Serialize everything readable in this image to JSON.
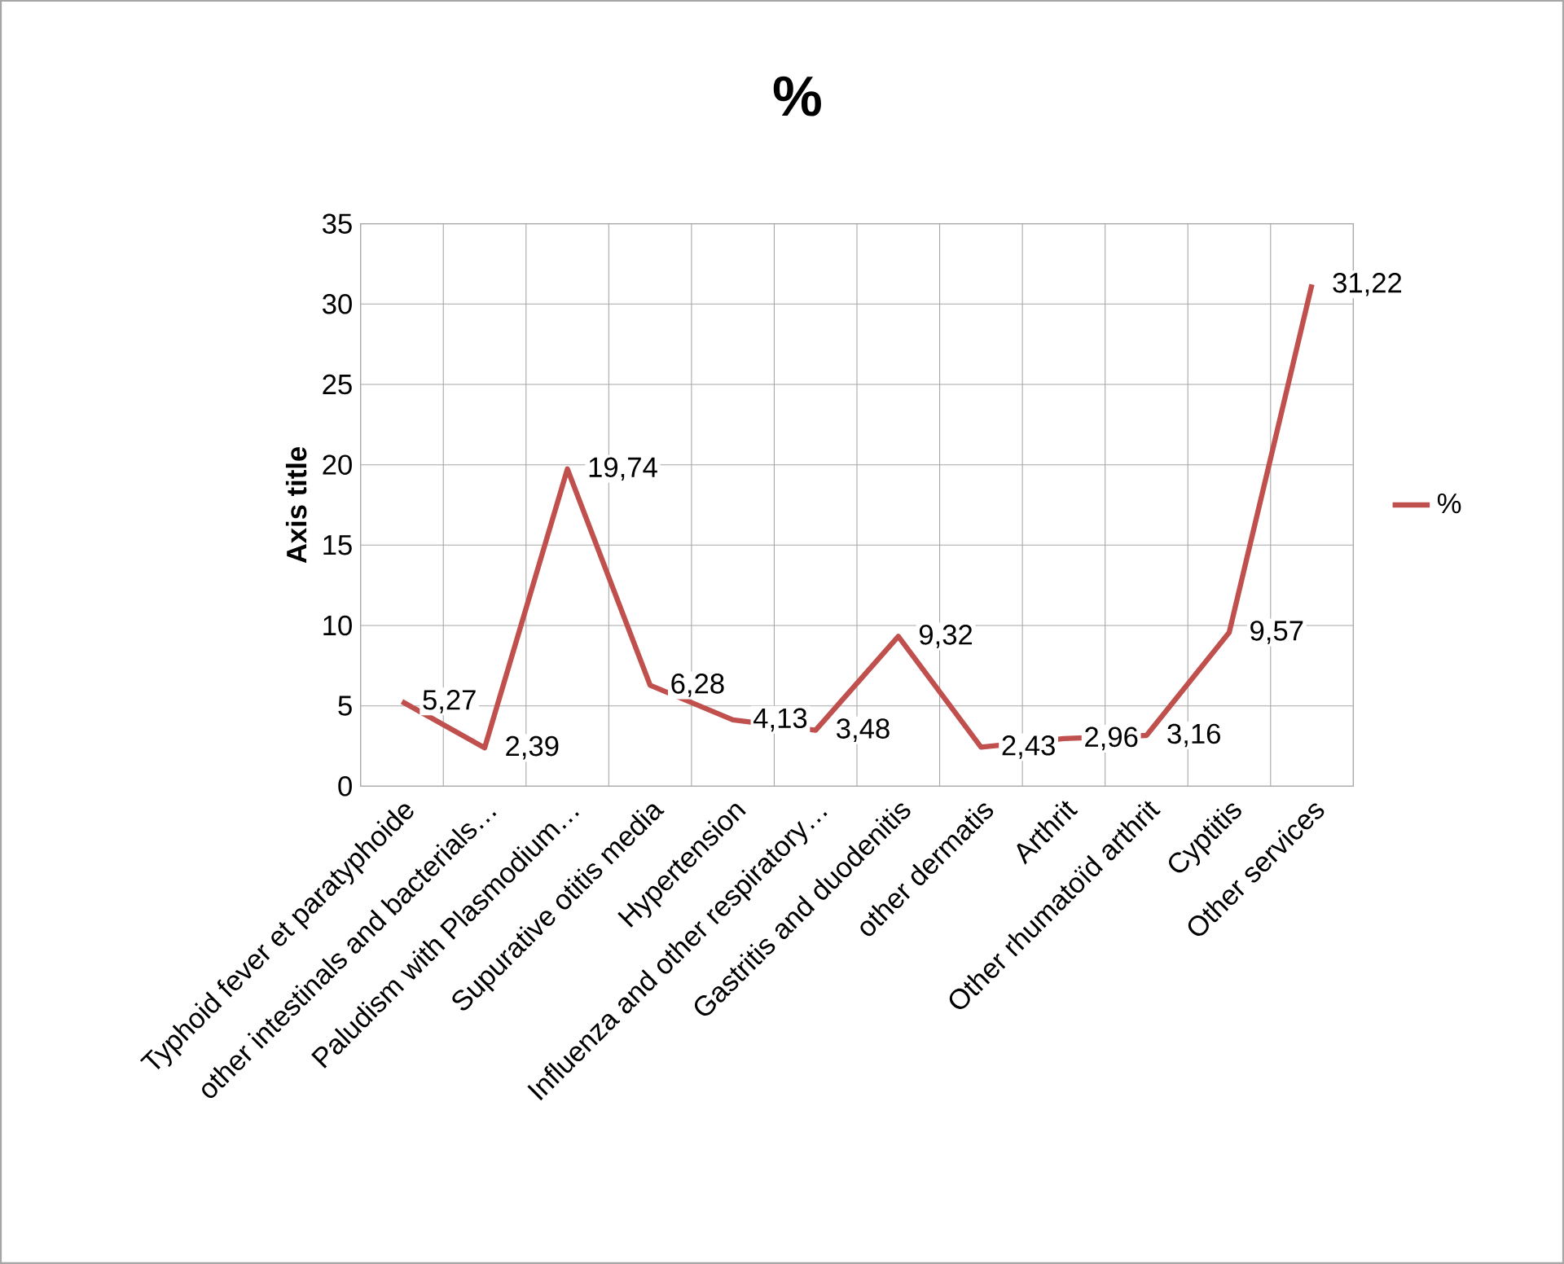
{
  "chart_data": {
    "type": "line",
    "title": "%",
    "ylabel": "Axis title",
    "categories": [
      "Typhoid fever et paratyphoide",
      "other intestinals and bacterials…",
      "Paludism with Plasmodium…",
      "Supurative otitis media",
      "Hypertension",
      "Influenza and other respiratory…",
      "Gastritis and duodenitis",
      "other dermatis",
      "Arthrit",
      "Other rhumatoïd arthrit",
      "Cyptitis",
      "Other services"
    ],
    "series": [
      {
        "name": "%",
        "color": "#c0504d",
        "values": [
          5.27,
          2.39,
          19.74,
          6.28,
          4.13,
          3.48,
          9.32,
          2.43,
          2.96,
          3.16,
          9.57,
          31.22
        ],
        "value_labels": [
          "5,27",
          "2,39",
          "19,74",
          "6,28",
          "4,13",
          "3,48",
          "9,32",
          "2,43",
          "2,96",
          "3,16",
          "9,57",
          "31,22"
        ]
      }
    ],
    "ylim": [
      0,
      35
    ],
    "yticks": [
      0,
      5,
      10,
      15,
      20,
      25,
      30,
      35
    ],
    "grid": true,
    "legend": "right",
    "marker": "none",
    "line_style": "solid"
  }
}
